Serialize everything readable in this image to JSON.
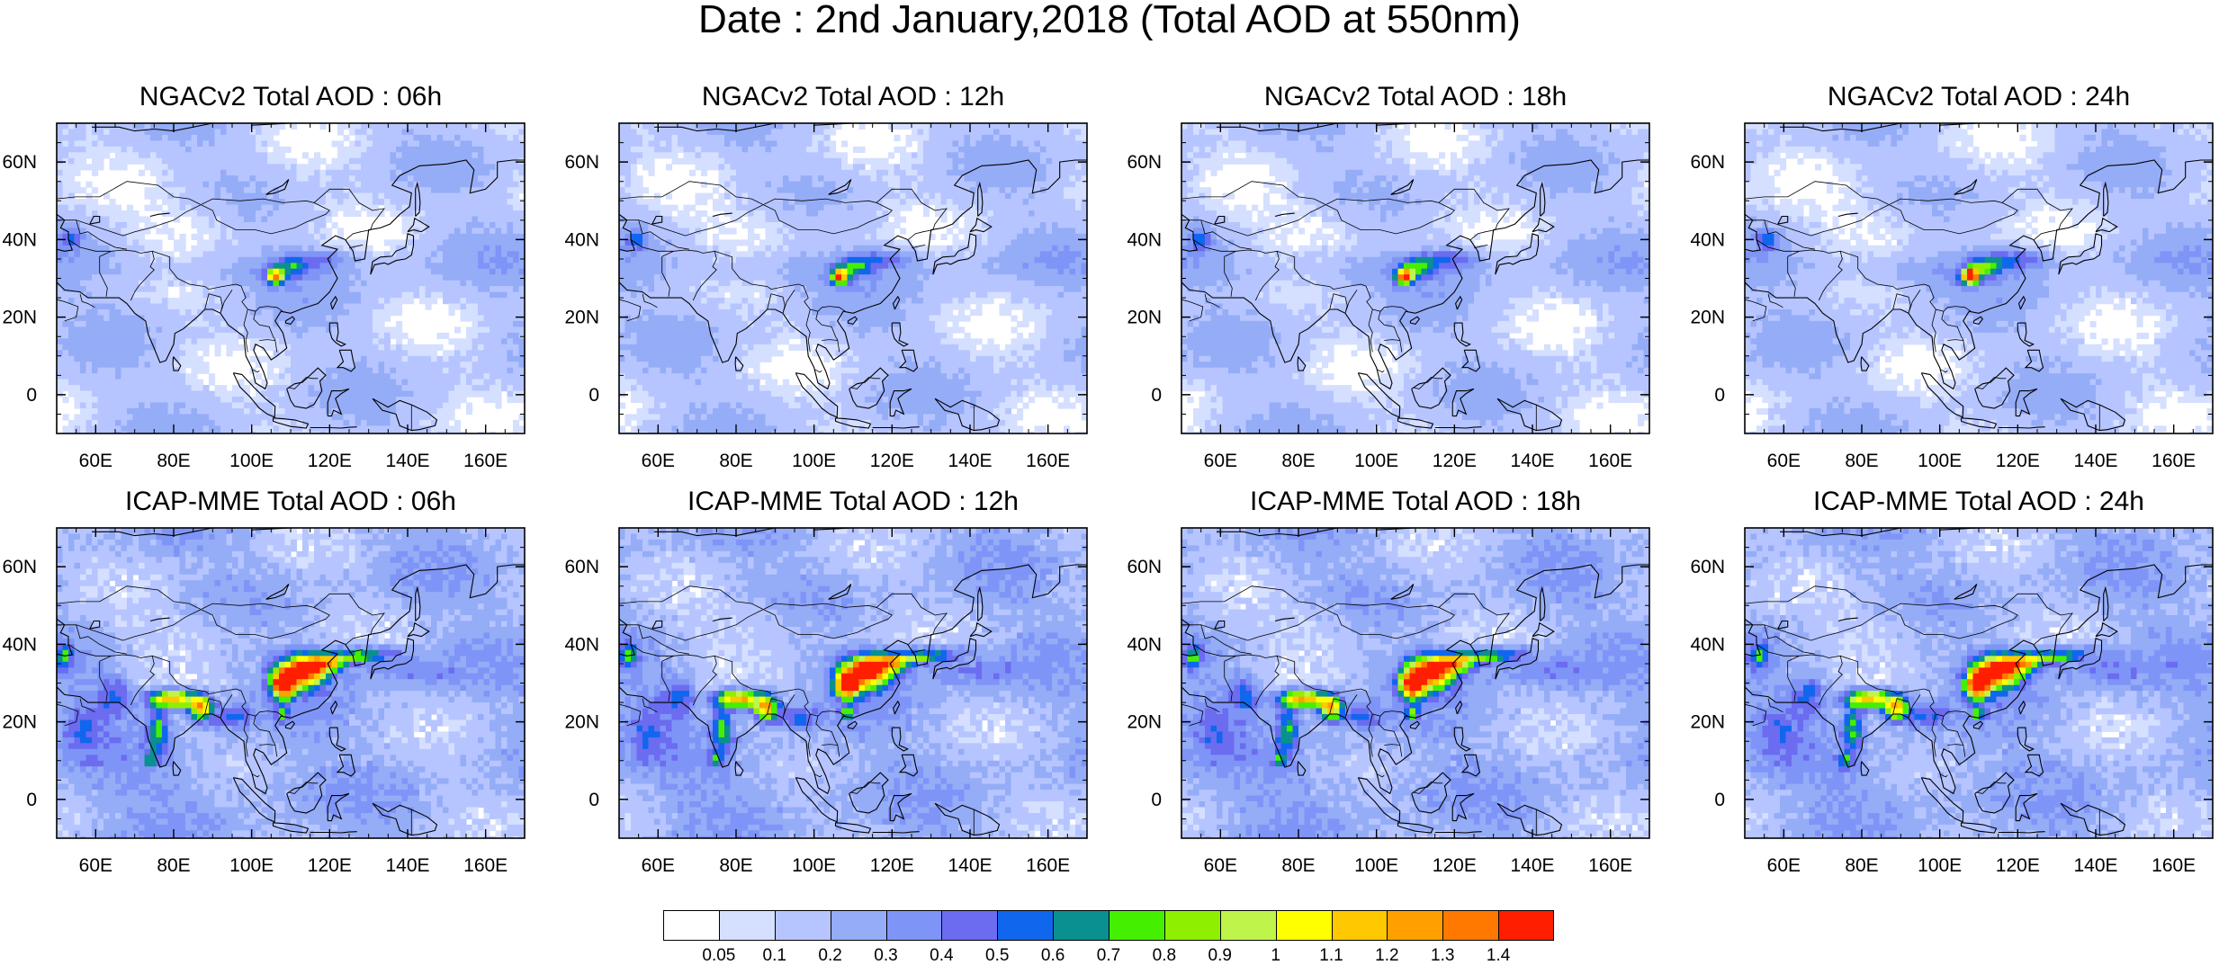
{
  "title": "Date : 2nd January,2018 (Total AOD at 550nm)",
  "panels": [
    {
      "title": "NGACv2 Total AOD : 06h",
      "model": "NGACv2",
      "hour": "06h"
    },
    {
      "title": "NGACv2 Total AOD : 12h",
      "model": "NGACv2",
      "hour": "12h"
    },
    {
      "title": "NGACv2 Total AOD : 18h",
      "model": "NGACv2",
      "hour": "18h"
    },
    {
      "title": "NGACv2 Total AOD : 24h",
      "model": "NGACv2",
      "hour": "24h"
    },
    {
      "title": "ICAP-MME Total AOD : 06h",
      "model": "ICAP-MME",
      "hour": "06h"
    },
    {
      "title": "ICAP-MME Total AOD : 12h",
      "model": "ICAP-MME",
      "hour": "12h"
    },
    {
      "title": "ICAP-MME Total AOD : 18h",
      "model": "ICAP-MME",
      "hour": "18h"
    },
    {
      "title": "ICAP-MME Total AOD : 24h",
      "model": "ICAP-MME",
      "hour": "24h"
    }
  ],
  "map": {
    "lon_range": [
      50,
      170
    ],
    "lat_range": [
      -10,
      70
    ],
    "lon_ticks": [
      "60E",
      "80E",
      "100E",
      "120E",
      "140E",
      "160E"
    ],
    "lon_tick_values": [
      60,
      80,
      100,
      120,
      140,
      160
    ],
    "lat_ticks": [
      "0",
      "20N",
      "40N",
      "60N"
    ],
    "lat_tick_values": [
      0,
      20,
      40,
      60
    ]
  },
  "colorbar": {
    "labels": [
      "0.05",
      "0.1",
      "0.2",
      "0.3",
      "0.4",
      "0.5",
      "0.6",
      "0.7",
      "0.8",
      "0.9",
      "1",
      "1.1",
      "1.2",
      "1.3",
      "1.4"
    ],
    "colors": [
      "#ffffff",
      "#d5dfff",
      "#b6c5ff",
      "#95acf7",
      "#7f94f7",
      "#6b6cf0",
      "#1166ee",
      "#0b9090",
      "#44f000",
      "#8ef000",
      "#bff54b",
      "#ffff00",
      "#ffc800",
      "#ffa000",
      "#ff7800",
      "#ff1e00"
    ]
  }
}
